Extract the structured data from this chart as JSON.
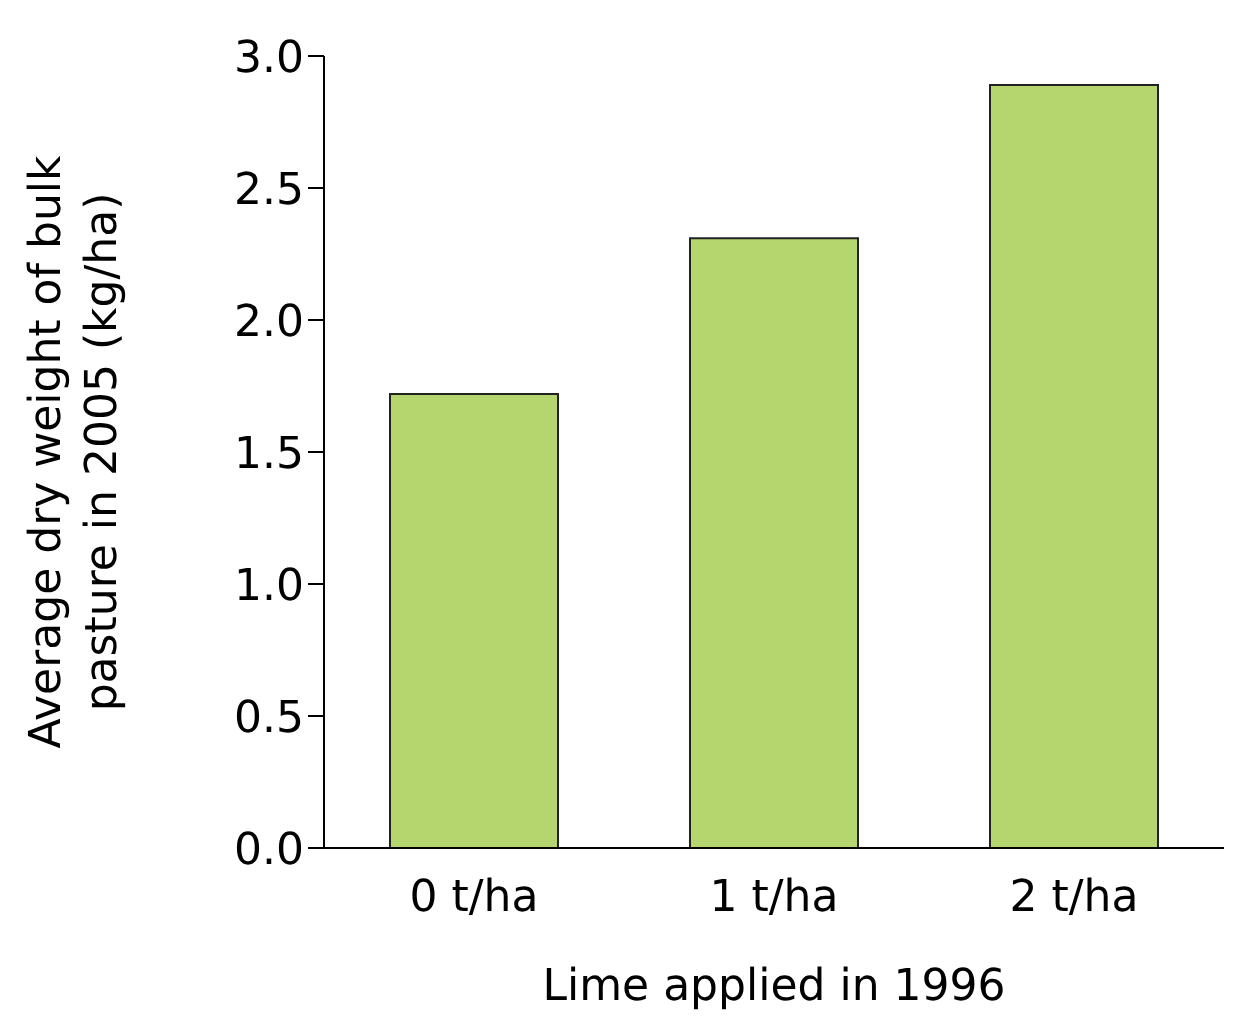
{
  "chart_data": {
    "type": "bar",
    "xlabel": "Lime applied in 1996",
    "ylabel": "Average dry weight of bulk pasture in 2005 (kg/ha)",
    "categories": [
      "0 t/ha",
      "1 t/ha",
      "2 t/ha"
    ],
    "values": [
      1.72,
      2.31,
      2.89
    ],
    "color": "#b5d56f",
    "ylim": [
      0,
      3
    ],
    "yticks": [
      {
        "value": 0,
        "label": "0.0"
      },
      0.5,
      {
        "value": 1,
        "label": "1.0"
      },
      1.5,
      {
        "value": 2,
        "label": "2.0"
      },
      2.5,
      {
        "value": 3,
        "label": "3.0"
      }
    ],
    "grid": false,
    "legend": false
  }
}
